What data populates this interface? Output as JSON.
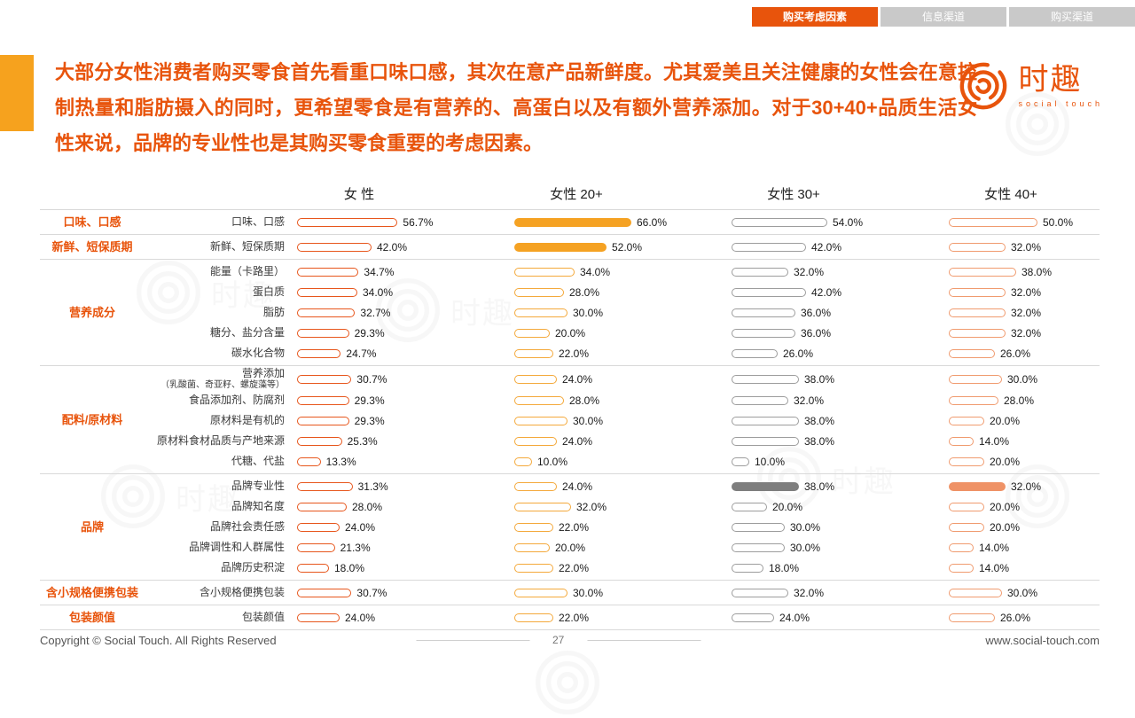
{
  "tabs": [
    {
      "label": "购买考虑因素",
      "active": true
    },
    {
      "label": "信息渠道",
      "active": false
    },
    {
      "label": "购买渠道",
      "active": false
    }
  ],
  "title": "大部分女性消费者购买零食首先看重口味口感，其次在意产品新鲜度。尤其爱美且关注健康的女性会在意控制热量和脂肪摄入的同时，更希望零食是有营养的、高蛋白以及有额外营养添加。对于30+40+品质生活女性来说，品牌的专业性也是其购买零食重要的考虑因素。",
  "logo": {
    "brand": "时趣",
    "subtitle": "social touch"
  },
  "chart_data": {
    "type": "bar",
    "unit": "%",
    "value_range": [
      0,
      100
    ],
    "columns": [
      {
        "label": "女 性",
        "color": "#e7561c",
        "solid_fill": "#e7561c"
      },
      {
        "label": "女性 20+",
        "color": "#f4a93b",
        "solid_fill": "#f5a223"
      },
      {
        "label": "女性 30+",
        "color": "#9d9d9d",
        "solid_fill": "#7e7e7e"
      },
      {
        "label": "女性 40+",
        "color": "#f09b6f",
        "solid_fill": "#ef9266"
      }
    ],
    "groups": [
      {
        "category": "口味、口感",
        "rows": [
          {
            "label": "口味、口感",
            "values": [
              56.7,
              66.0,
              54.0,
              50.0
            ],
            "solid": [
              false,
              true,
              false,
              false
            ]
          }
        ]
      },
      {
        "category": "新鲜、短保质期",
        "rows": [
          {
            "label": "新鲜、短保质期",
            "values": [
              42.0,
              52.0,
              42.0,
              32.0
            ],
            "solid": [
              false,
              true,
              false,
              false
            ]
          }
        ]
      },
      {
        "category": "营养成分",
        "rows": [
          {
            "label": "能量（卡路里）",
            "values": [
              34.7,
              34.0,
              32.0,
              38.0
            ]
          },
          {
            "label": "蛋白质",
            "values": [
              34.0,
              28.0,
              42.0,
              32.0
            ]
          },
          {
            "label": "脂肪",
            "values": [
              32.7,
              30.0,
              36.0,
              32.0
            ]
          },
          {
            "label": "糖分、盐分含量",
            "values": [
              29.3,
              20.0,
              36.0,
              32.0
            ]
          },
          {
            "label": "碳水化合物",
            "values": [
              24.7,
              22.0,
              26.0,
              26.0
            ]
          }
        ]
      },
      {
        "category": "配料/原材料",
        "rows": [
          {
            "label": "营养添加",
            "sublabel": "（乳酸菌、奇亚籽、螺旋藻等）",
            "values": [
              30.7,
              24.0,
              38.0,
              30.0
            ]
          },
          {
            "label": "食品添加剂、防腐剂",
            "values": [
              29.3,
              28.0,
              32.0,
              28.0
            ]
          },
          {
            "label": "原材料是有机的",
            "values": [
              29.3,
              30.0,
              38.0,
              20.0
            ]
          },
          {
            "label": "原材料食材品质与产地来源",
            "values": [
              25.3,
              24.0,
              38.0,
              14.0
            ]
          },
          {
            "label": "代糖、代盐",
            "values": [
              13.3,
              10.0,
              10.0,
              20.0
            ]
          }
        ]
      },
      {
        "category": "品牌",
        "rows": [
          {
            "label": "品牌专业性",
            "values": [
              31.3,
              24.0,
              38.0,
              32.0
            ],
            "solid": [
              false,
              false,
              true,
              true
            ]
          },
          {
            "label": "品牌知名度",
            "values": [
              28.0,
              32.0,
              20.0,
              20.0
            ]
          },
          {
            "label": "品牌社会责任感",
            "values": [
              24.0,
              22.0,
              30.0,
              20.0
            ]
          },
          {
            "label": "品牌调性和人群属性",
            "values": [
              21.3,
              20.0,
              30.0,
              14.0
            ]
          },
          {
            "label": "品牌历史积淀",
            "values": [
              18.0,
              22.0,
              18.0,
              14.0
            ]
          }
        ]
      },
      {
        "category": "含小规格便携包装",
        "rows": [
          {
            "label": "含小规格便携包装",
            "values": [
              30.7,
              30.0,
              32.0,
              30.0
            ]
          }
        ]
      },
      {
        "category": "包装颜值",
        "rows": [
          {
            "label": "包装颜值",
            "values": [
              24.0,
              22.0,
              24.0,
              26.0
            ]
          }
        ]
      }
    ]
  },
  "footer": {
    "copyright": "Copyright © Social Touch. All Rights Reserved",
    "page": "27",
    "website": "www.social-touch.com"
  }
}
